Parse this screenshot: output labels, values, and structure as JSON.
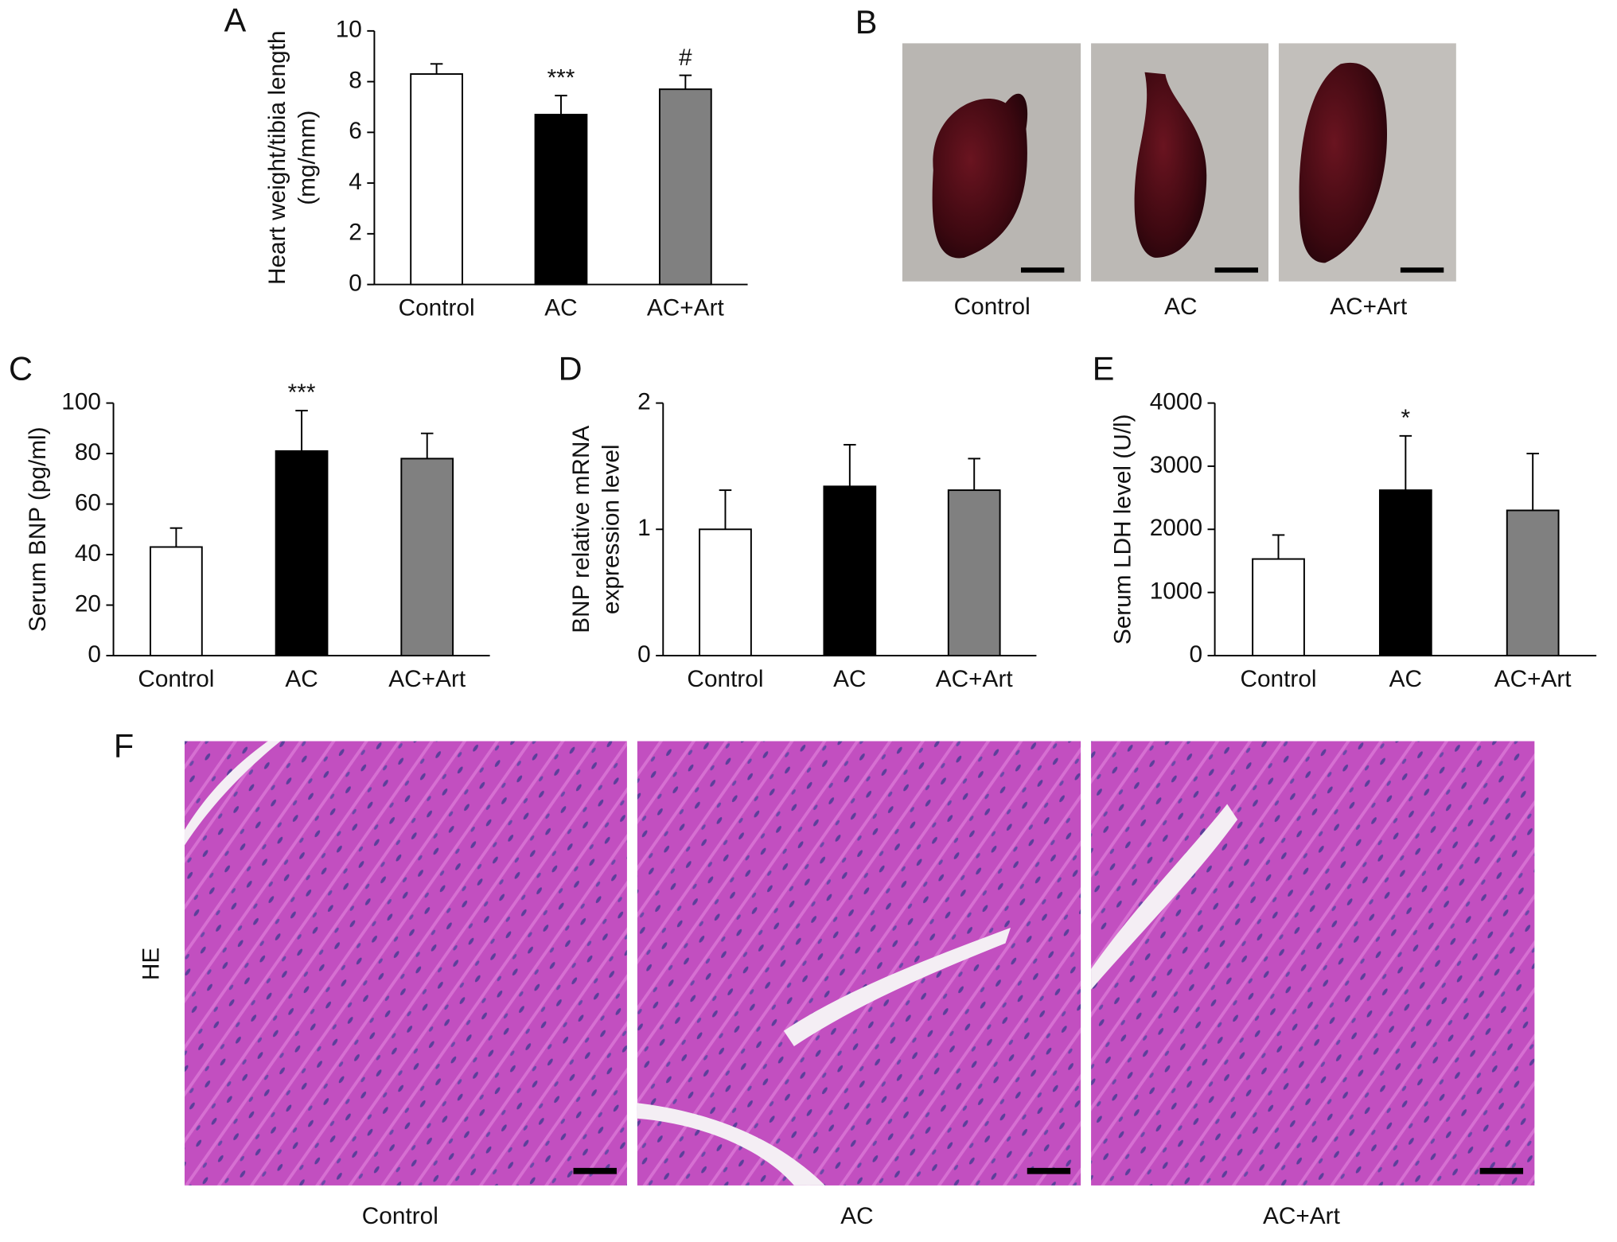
{
  "chart_data": [
    {
      "type": "bar",
      "panel": "A",
      "ylabel": [
        "Heart weight/tibia length",
        "(mg/mm)"
      ],
      "categories": [
        "Control",
        "AC",
        "AC+Art"
      ],
      "values": [
        8.3,
        6.7,
        7.7
      ],
      "errors": [
        0.4,
        0.75,
        0.55
      ],
      "annotations": [
        null,
        "***",
        "#"
      ],
      "colors": [
        "#ffffff",
        "#000000",
        "#808080"
      ],
      "ylim": [
        0,
        10
      ],
      "yticks": [
        0,
        2,
        4,
        6,
        8,
        10
      ]
    },
    {
      "type": "bar",
      "panel": "C",
      "ylabel": [
        "Serum BNP (pg/ml)"
      ],
      "categories": [
        "Control",
        "AC",
        "AC+Art"
      ],
      "values": [
        43,
        81,
        78
      ],
      "errors": [
        7.5,
        16,
        10
      ],
      "annotations": [
        null,
        "***",
        null
      ],
      "colors": [
        "#ffffff",
        "#000000",
        "#808080"
      ],
      "ylim": [
        0,
        100
      ],
      "yticks": [
        0,
        20,
        40,
        60,
        80,
        100
      ]
    },
    {
      "type": "bar",
      "panel": "D",
      "ylabel": [
        "BNP relative mRNA",
        "expression level"
      ],
      "categories": [
        "Control",
        "AC",
        "AC+Art"
      ],
      "values": [
        1.0,
        1.34,
        1.31
      ],
      "errors": [
        0.31,
        0.33,
        0.25
      ],
      "annotations": [
        null,
        null,
        null
      ],
      "colors": [
        "#ffffff",
        "#000000",
        "#808080"
      ],
      "ylim": [
        0,
        2
      ],
      "yticks": [
        0,
        1,
        2
      ]
    },
    {
      "type": "bar",
      "panel": "E",
      "ylabel": [
        "Serum LDH level (U/l)"
      ],
      "categories": [
        "Control",
        "AC",
        "AC+Art"
      ],
      "values": [
        1530,
        2620,
        2300
      ],
      "errors": [
        380,
        860,
        900
      ],
      "annotations": [
        null,
        "*",
        null
      ],
      "colors": [
        "#ffffff",
        "#000000",
        "#808080"
      ],
      "ylim": [
        0,
        4000
      ],
      "yticks": [
        0,
        1000,
        2000,
        3000,
        4000
      ]
    }
  ],
  "photos_b": {
    "panel": "B",
    "captions": [
      "Control",
      "AC",
      "AC+Art"
    ]
  },
  "photos_f": {
    "panel": "F",
    "row_label": "HE",
    "captions": [
      "Control",
      "AC",
      "AC+Art"
    ]
  }
}
